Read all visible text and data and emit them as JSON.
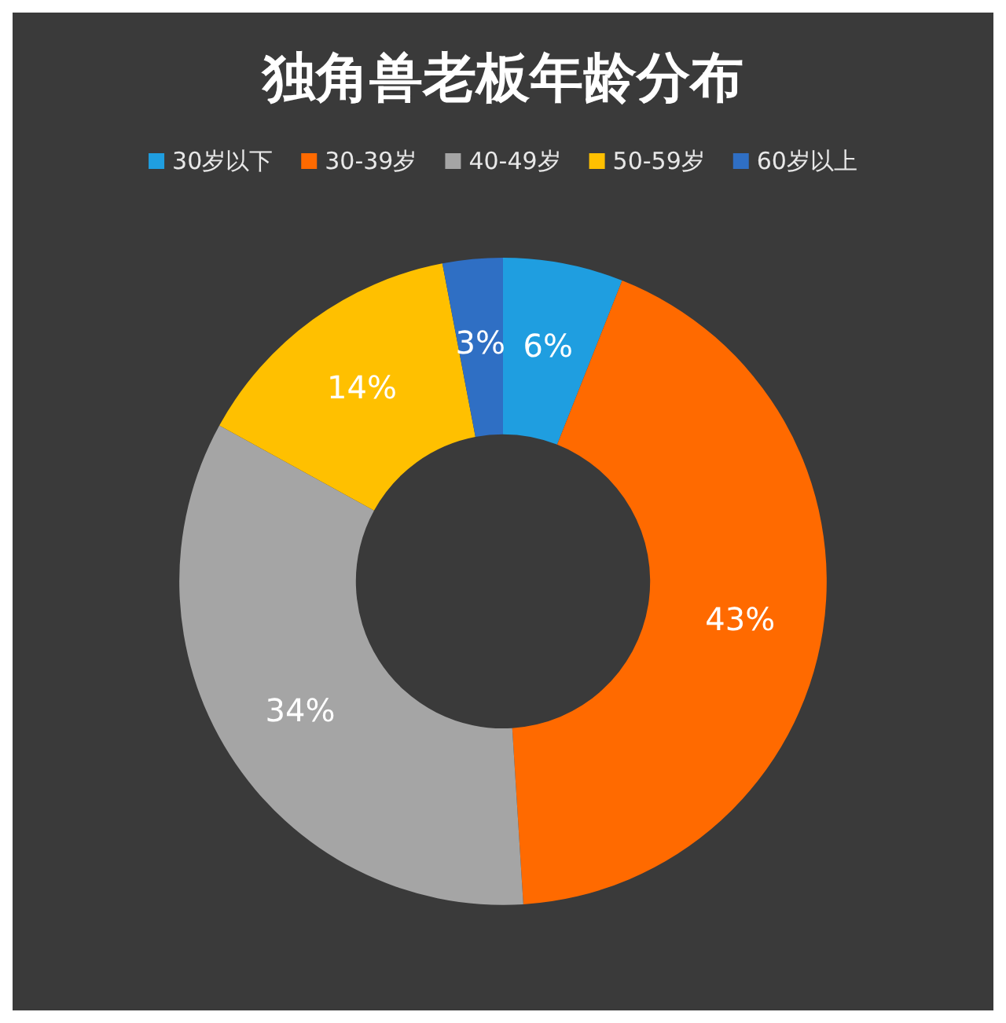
{
  "chart_data": {
    "type": "donut",
    "title": "独角兽老板年龄分布",
    "categories": [
      "30岁以下",
      "30-39岁",
      "40-49岁",
      "50-59岁",
      "60岁以上"
    ],
    "values": [
      6,
      43,
      34,
      14,
      3
    ],
    "value_labels": [
      "6%",
      "43%",
      "34%",
      "14%",
      "3%"
    ],
    "colors": [
      "#1f9ee0",
      "#ff6a00",
      "#a5a5a5",
      "#ffc000",
      "#2f6fc4"
    ],
    "legend": "top"
  }
}
